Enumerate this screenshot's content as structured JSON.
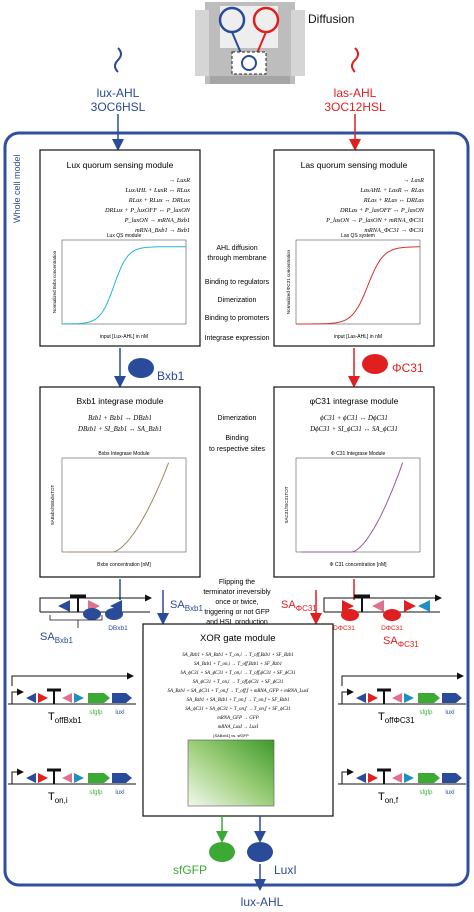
{
  "top": {
    "diffusion_label": "Diffusion",
    "lux_signal": "lux-AHL",
    "lux_signal_sub": "3OC6HSL",
    "las_signal": "las-AHL",
    "las_signal_sub": "3OC12HSL"
  },
  "whole_model_label": "Whole cell model",
  "lux_module": {
    "title": "Lux quorum sensing module",
    "equations": [
      "→ LuxR",
      "LuxAHL + LuxR ↔ RLux",
      "RLux + RLux ↔ DRLux",
      "DRLux + P_luxOFF ↔ P_luxON",
      "P_luxON → mRNA_Bxb1",
      "mRNA_Bxb1 → Bxb1"
    ],
    "plot_title": "Lux QS module",
    "ylabel": "Normalized Bxbs concentration",
    "xlabel": "input [Lux-AHL] in nM"
  },
  "las_module": {
    "title": "Las quorum sensing module",
    "equations": [
      "→ LasR",
      "LasAHL + LasR ↔ RLas",
      "RLas + RLas ↔ DRLas",
      "DRLas + P_lasOFF ↔ P_lasON",
      "P_lasON → P_lasON + mRNA_ΦC31",
      "mRNA_ΦC31 → ΦC31"
    ],
    "plot_title": "Las QS system",
    "ylabel": "Normalized ΦC31 concentration",
    "xlabel": "input [Las-AHL] in nM"
  },
  "middle_steps": [
    "AHL diffusion",
    "through membrane",
    "Binding to regulators",
    "Dimerization",
    "Binding to promoters",
    "Integrase expression"
  ],
  "bxb1_protein": "Bxb1",
  "phic31_protein": "ΦC31",
  "bxb1_module": {
    "title": "Bxb1 integrase module",
    "equations": [
      "Bzb1 + Bzb1 ↔ DBzb1",
      "DBzb1 + SI_Bzb1 ↔ SA_Bzb1"
    ],
    "plot_title": "Bxbs Integrase Module",
    "ylabel": "SABxbs/SIBxbsTOT",
    "xlabel": "Bxbs concentration [nM]"
  },
  "phic31_module": {
    "title": "φC31 integrase module",
    "equations": [
      "ϕC31 + ϕC31 ↔ DϕC31",
      "DϕC31 + SI_ϕC31 ↔ SA_ϕC31"
    ],
    "plot_title": "Φ C31 Integrase Module",
    "ylabel": "SAC31/SIC31TOT",
    "xlabel": "Φ C31 concentration [nM]"
  },
  "middle2_steps": [
    "Dimerization",
    "Binding",
    "to respective sites"
  ],
  "flip_text": [
    "Flipping the",
    "terminator irreversibly",
    "once or twice,",
    "triggering or not GFP",
    "and HSL production"
  ],
  "sa_bxb1_right": "SA",
  "sa_bxb1_right_sub": "Bxb1",
  "sa_phic31_left": "SA",
  "sa_phic31_left_sub": "ΦC31",
  "dbxb1_label": "DBxb1",
  "dphic31_label_a": "DΦC31",
  "dphic31_label_b": "DΦC31",
  "sa_bxb1_bottom": "SA",
  "sa_bxb1_bottom_sub": "Bxb1",
  "sa_phic31_bottom": "SA",
  "sa_phic31_bottom_sub": "ΦC31",
  "xor_module": {
    "title": "XOR gate module",
    "equations": [
      "SA_Bzb1 + SA_Bzb1 + T_on,i → T_off,Bzb1 + SF_Bzb1",
      "SA_Bzb1 + T_on,i → T_off,Bzb1 + SF_Bzb1",
      "SA_ϕC31 + SA_ϕC31 + T_on,i → T_off,ϕC31 + SF_ϕC31",
      "SA_ϕC31 + T_on,i → T_off,ϕC31 + SF_ϕC31",
      "SA_Bzb1 + SA_ϕC31 + T_on,f → T_off,f + mRNA_GFP + mRNA_LuxI",
      "SA_Bzb1 + SA_Bzb1 + T_on,f → T_on,f + SF_Bzb1",
      "SA_ϕC31 + SA_ϕC31 + T_on,f → T_on,f + SF_ϕC31",
      "mRNA_GFP → GFP",
      "mRNA_LuxI → LuxI"
    ],
    "heatmap_title": "[SABxb1] vs. sfGFP"
  },
  "constructs": {
    "left_top": {
      "label": "T",
      "sub": "offBxb1",
      "gene1": "sfgfp",
      "gene2": "luxI"
    },
    "left_bottom": {
      "label": "T",
      "sub": "on,i",
      "gene1": "sfgfp",
      "gene2": "luxI"
    },
    "right_top": {
      "label": "T",
      "sub": "offΦC31",
      "gene1": "sfgfp",
      "gene2": "luxI"
    },
    "right_bottom": {
      "label": "T",
      "sub": "on,f",
      "gene1": "sfgfp",
      "gene2": "luxI"
    }
  },
  "outputs": {
    "sfgfp": "sfGFP",
    "luxi": "LuxI",
    "final": "lux-AHL"
  },
  "colors": {
    "blue": "#2a4a9a",
    "red": "#e02020",
    "green": "#3aaa35",
    "frame": "#2d4f9e",
    "lux_curve": "#28b4d8",
    "las_curve": "#d83030",
    "bxb1_curve": "#9a8a60",
    "phic31_curve": "#9a5a9a"
  }
}
